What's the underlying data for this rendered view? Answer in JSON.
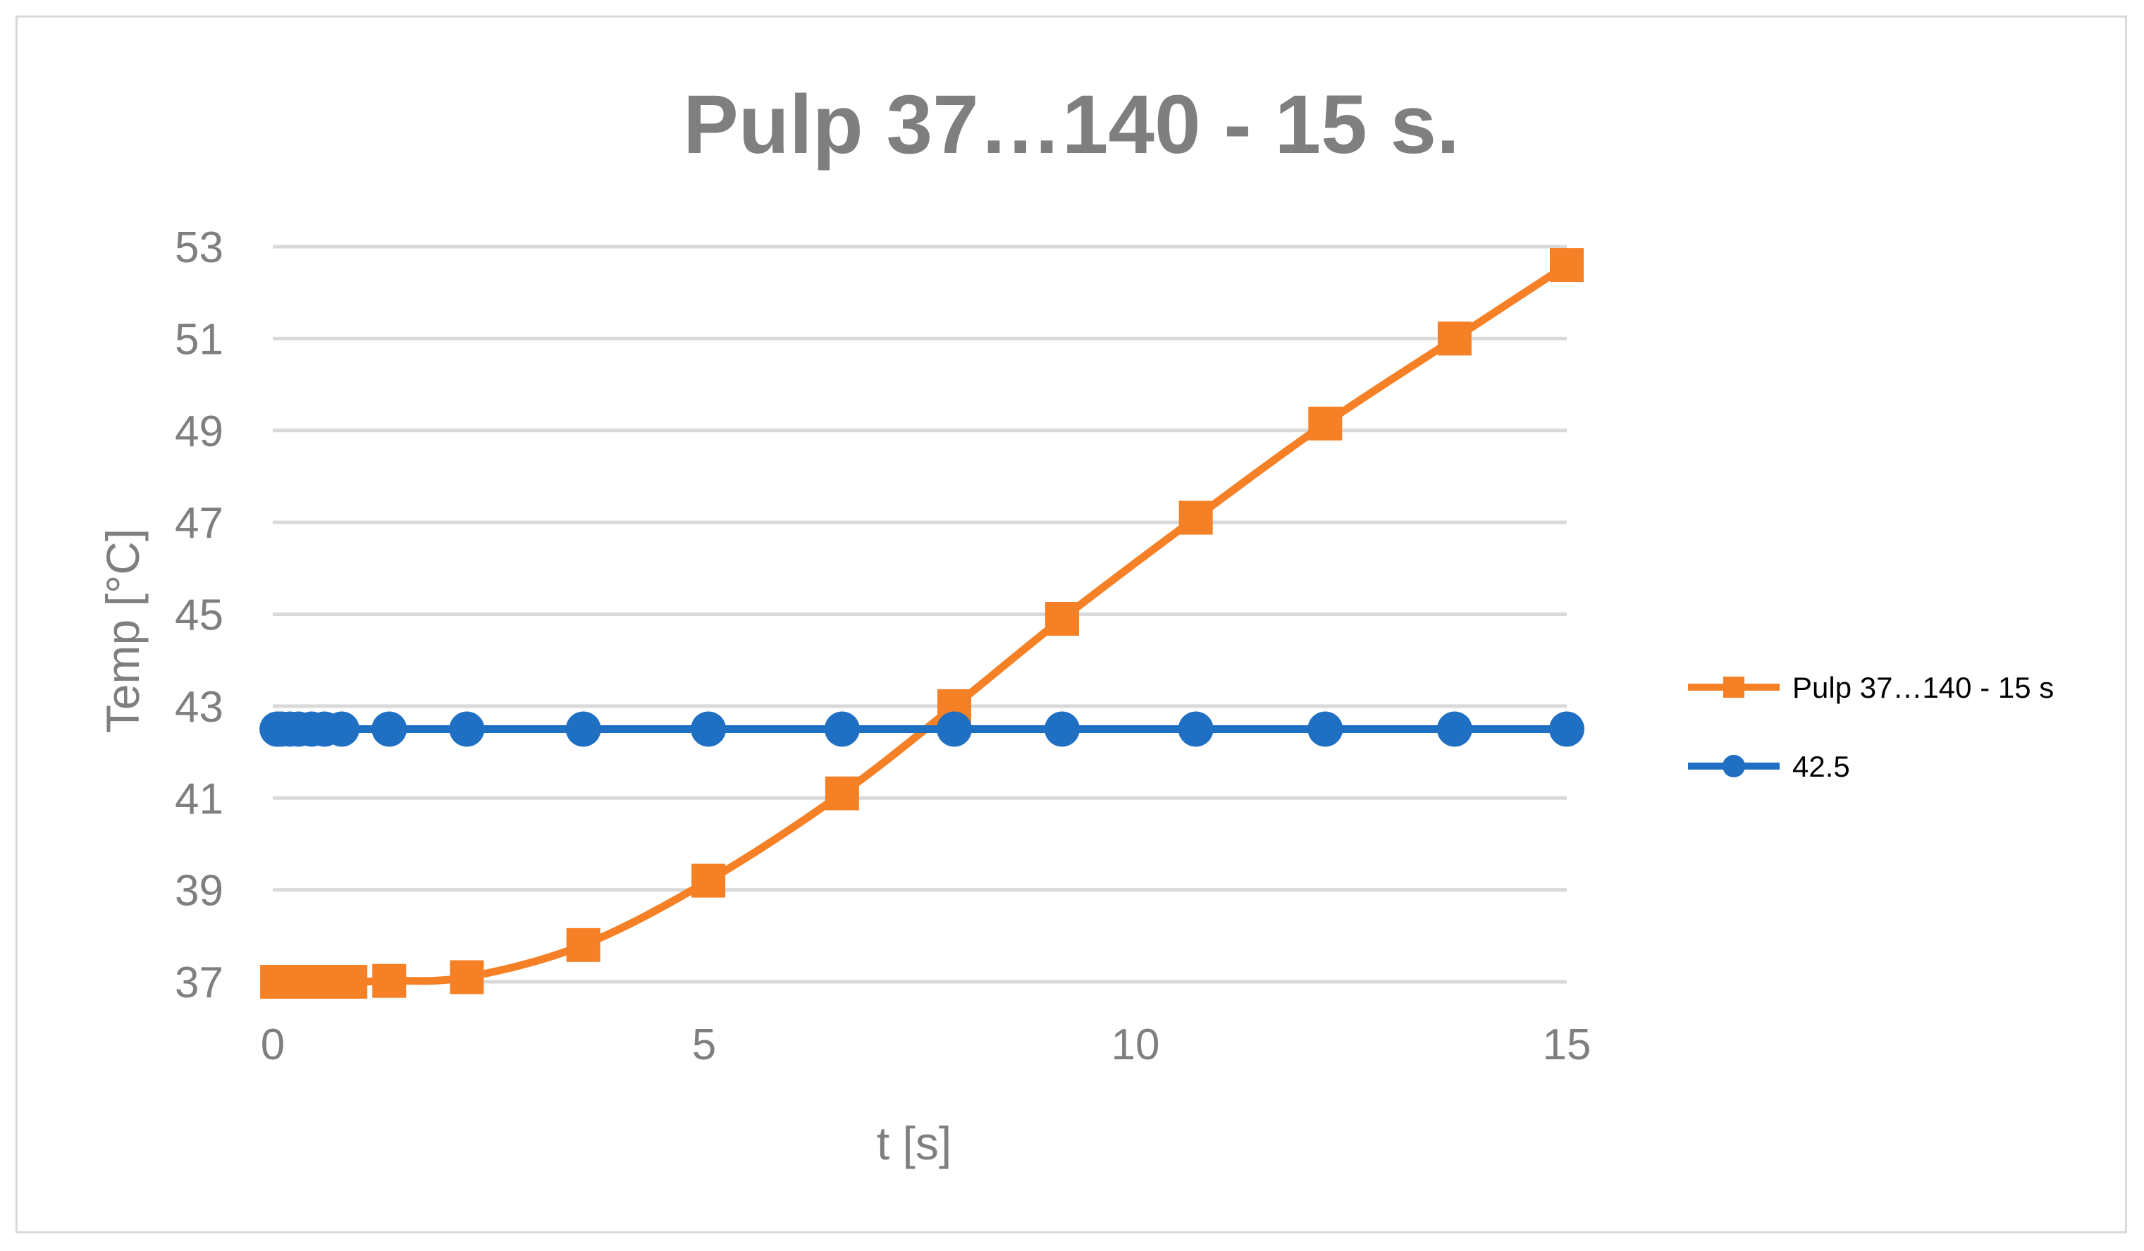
{
  "chart_data": {
    "type": "line",
    "title": "Pulp 37…140 - 15 s.",
    "xlabel": "t [s]",
    "ylabel": "Temp [°C]",
    "xlim": [
      0,
      15
    ],
    "ylim": [
      37,
      53
    ],
    "x_ticks": [
      "0",
      "5",
      "10",
      "15"
    ],
    "y_ticks": [
      "37",
      "39",
      "41",
      "43",
      "45",
      "47",
      "49",
      "51",
      "53"
    ],
    "grid": true,
    "legend_position": "right",
    "series": [
      {
        "name": "Pulp 37…140 - 15 s",
        "color": "#f58025",
        "marker": "square",
        "x": [
          0.05,
          0.1,
          0.2,
          0.3,
          0.45,
          0.6,
          0.8,
          0.9,
          1.35,
          2.25,
          3.6,
          5.05,
          6.6,
          7.9,
          9.15,
          10.7,
          12.2,
          13.7,
          15.0
        ],
        "y": [
          37.0,
          37.0,
          37.0,
          37.0,
          37.0,
          37.0,
          37.0,
          37.0,
          37.02,
          37.1,
          37.8,
          39.2,
          41.1,
          43.0,
          44.9,
          47.1,
          49.15,
          51.0,
          52.6
        ]
      },
      {
        "name": "42.5",
        "color": "#1f6fc2",
        "marker": "circle",
        "x": [
          0.05,
          0.1,
          0.2,
          0.3,
          0.45,
          0.6,
          0.8,
          1.35,
          2.25,
          3.6,
          5.05,
          6.6,
          7.9,
          9.15,
          10.7,
          12.2,
          13.7,
          15.0
        ],
        "y": [
          42.5,
          42.5,
          42.5,
          42.5,
          42.5,
          42.5,
          42.5,
          42.5,
          42.5,
          42.5,
          42.5,
          42.5,
          42.5,
          42.5,
          42.5,
          42.5,
          42.5,
          42.5
        ]
      }
    ]
  }
}
